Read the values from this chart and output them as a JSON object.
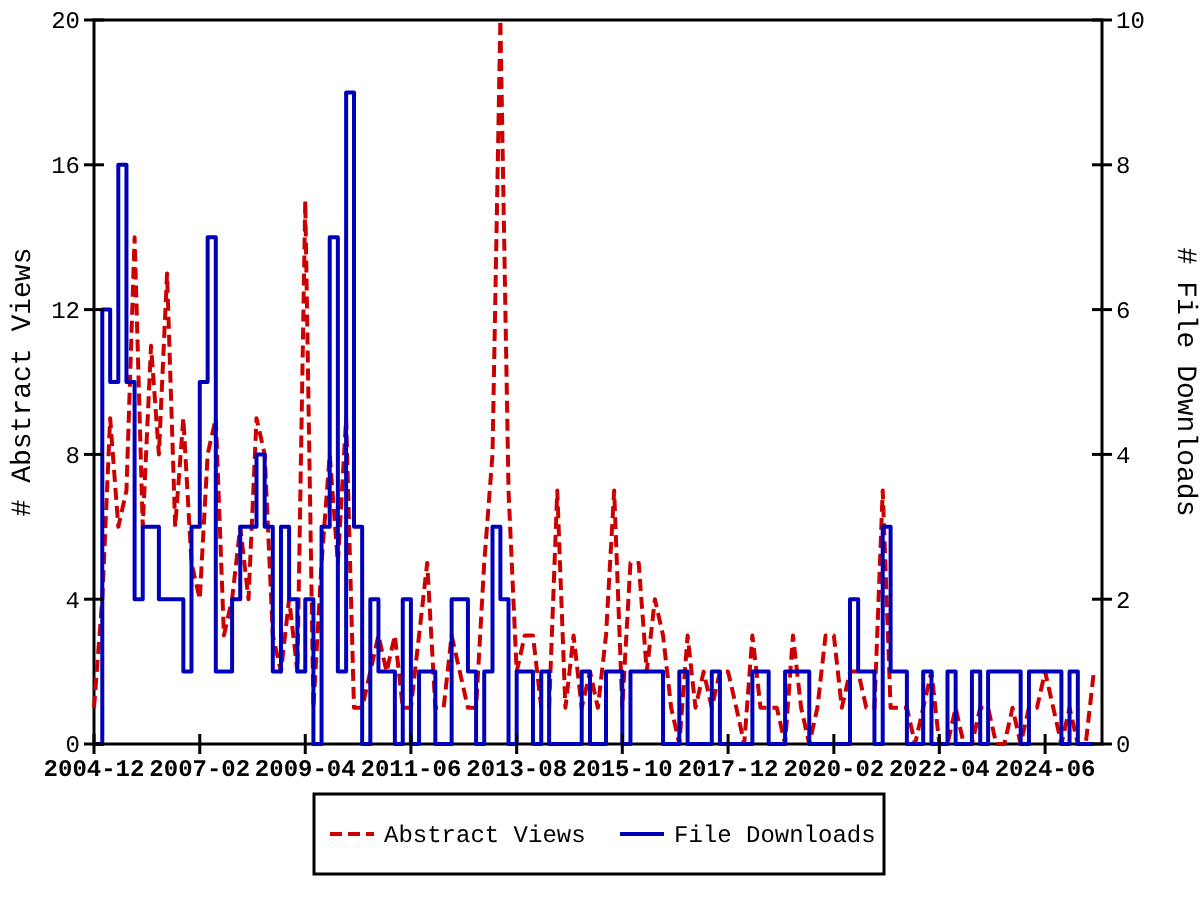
{
  "chart_data": {
    "type": "line",
    "xlabel": null,
    "ylabel": "# Abstract Views",
    "y2label": "# File Downloads",
    "x": [
      "2004-12",
      "2005-02",
      "2005-04",
      "2005-06",
      "2005-08",
      "2005-10",
      "2005-12",
      "2006-02",
      "2006-04",
      "2006-06",
      "2006-08",
      "2006-10",
      "2006-12",
      "2007-02",
      "2007-04",
      "2007-06",
      "2007-08",
      "2007-10",
      "2007-12",
      "2008-02",
      "2008-04",
      "2008-06",
      "2008-08",
      "2008-10",
      "2008-12",
      "2009-02",
      "2009-04",
      "2009-06",
      "2009-08",
      "2009-10",
      "2009-12",
      "2010-02",
      "2010-04",
      "2010-06",
      "2010-08",
      "2010-10",
      "2010-12",
      "2011-02",
      "2011-04",
      "2011-06",
      "2011-08",
      "2011-10",
      "2011-12",
      "2012-02",
      "2012-04",
      "2012-06",
      "2012-08",
      "2012-10",
      "2012-12",
      "2013-02",
      "2013-04",
      "2013-06",
      "2013-08",
      "2013-10",
      "2013-12",
      "2014-02",
      "2014-04",
      "2014-06",
      "2014-08",
      "2014-10",
      "2014-12",
      "2015-02",
      "2015-04",
      "2015-06",
      "2015-08",
      "2015-10",
      "2015-12",
      "2016-02",
      "2016-04",
      "2016-06",
      "2016-08",
      "2016-10",
      "2016-12",
      "2017-02",
      "2017-04",
      "2017-06",
      "2017-08",
      "2017-10",
      "2017-12",
      "2018-02",
      "2018-04",
      "2018-06",
      "2018-08",
      "2018-10",
      "2018-12",
      "2019-02",
      "2019-04",
      "2019-06",
      "2019-08",
      "2019-10",
      "2019-12",
      "2020-02",
      "2020-04",
      "2020-06",
      "2020-08",
      "2020-10",
      "2020-12",
      "2021-02",
      "2021-04",
      "2021-06",
      "2021-08",
      "2021-10",
      "2021-12",
      "2022-02",
      "2022-04",
      "2022-06",
      "2022-08",
      "2022-10",
      "2022-12",
      "2023-02",
      "2023-04",
      "2023-06",
      "2023-08",
      "2023-10",
      "2023-12",
      "2024-02",
      "2024-04",
      "2024-06",
      "2024-08",
      "2024-10",
      "2024-12",
      "2025-02",
      "2025-04",
      "2025-06"
    ],
    "series": [
      {
        "name": "Abstract Views",
        "color": "#cc0000",
        "line_style": "dashed",
        "axis": "y",
        "values": [
          1,
          4,
          9,
          6,
          7,
          14,
          6,
          11,
          8,
          13,
          6,
          9,
          5,
          4,
          8,
          9,
          3,
          4,
          6,
          4,
          9,
          8,
          3,
          2,
          4,
          2,
          15,
          1,
          5,
          8,
          5,
          9,
          1,
          1,
          2,
          3,
          2,
          3,
          1,
          1,
          3,
          5,
          1,
          1,
          3,
          2,
          1,
          1,
          5,
          8,
          20,
          7,
          2,
          3,
          3,
          1,
          1,
          7,
          1,
          3,
          1,
          2,
          1,
          3,
          7,
          1,
          5,
          5,
          2,
          4,
          3,
          1,
          0,
          3,
          1,
          2,
          1,
          2,
          2,
          1,
          0,
          3,
          1,
          1,
          1,
          0,
          3,
          1,
          0,
          1,
          3,
          3,
          1,
          2,
          2,
          1,
          1,
          7,
          1,
          1,
          1,
          0,
          1,
          2,
          0,
          0,
          1,
          0,
          0,
          1,
          1,
          0,
          0,
          1,
          0,
          1,
          1,
          2,
          1,
          0,
          1,
          0,
          0,
          2
        ]
      },
      {
        "name": "File Downloads",
        "color": "#0000bb",
        "type": "step",
        "line_style": "solid",
        "axis": "y2",
        "values": [
          0,
          6,
          5,
          8,
          5,
          2,
          3,
          3,
          2,
          2,
          2,
          1,
          3,
          5,
          7,
          1,
          1,
          2,
          3,
          3,
          4,
          3,
          1,
          3,
          2,
          1,
          2,
          0,
          3,
          7,
          1,
          9,
          3,
          0,
          2,
          1,
          1,
          0,
          2,
          0,
          1,
          1,
          0,
          0,
          2,
          2,
          1,
          0,
          1,
          3,
          2,
          0,
          1,
          1,
          0,
          1,
          0,
          0,
          0,
          0,
          1,
          0,
          0,
          1,
          1,
          0,
          1,
          1,
          1,
          1,
          0,
          0,
          1,
          0,
          0,
          0,
          1,
          0,
          0,
          0,
          0,
          1,
          1,
          0,
          0,
          1,
          1,
          1,
          0,
          0,
          0,
          0,
          0,
          2,
          1,
          1,
          0,
          3,
          1,
          1,
          0,
          0,
          1,
          0,
          0,
          1,
          0,
          0,
          1,
          0,
          1,
          1,
          1,
          1,
          0,
          1,
          1,
          1,
          1,
          0,
          1,
          0,
          0,
          0
        ]
      }
    ],
    "xlim": [
      "2004-12",
      "2025-08"
    ],
    "xticks": [
      "2004-12",
      "2007-02",
      "2009-04",
      "2011-06",
      "2013-08",
      "2015-10",
      "2017-12",
      "2020-02",
      "2022-04",
      "2024-06"
    ],
    "ylim": [
      0,
      20
    ],
    "yticks": [
      0,
      4,
      8,
      12,
      16,
      20
    ],
    "y2lim": [
      0,
      10
    ],
    "y2ticks": [
      0,
      2,
      4,
      6,
      8,
      10
    ],
    "legend": "bottom",
    "grid": false,
    "marker": "none"
  }
}
